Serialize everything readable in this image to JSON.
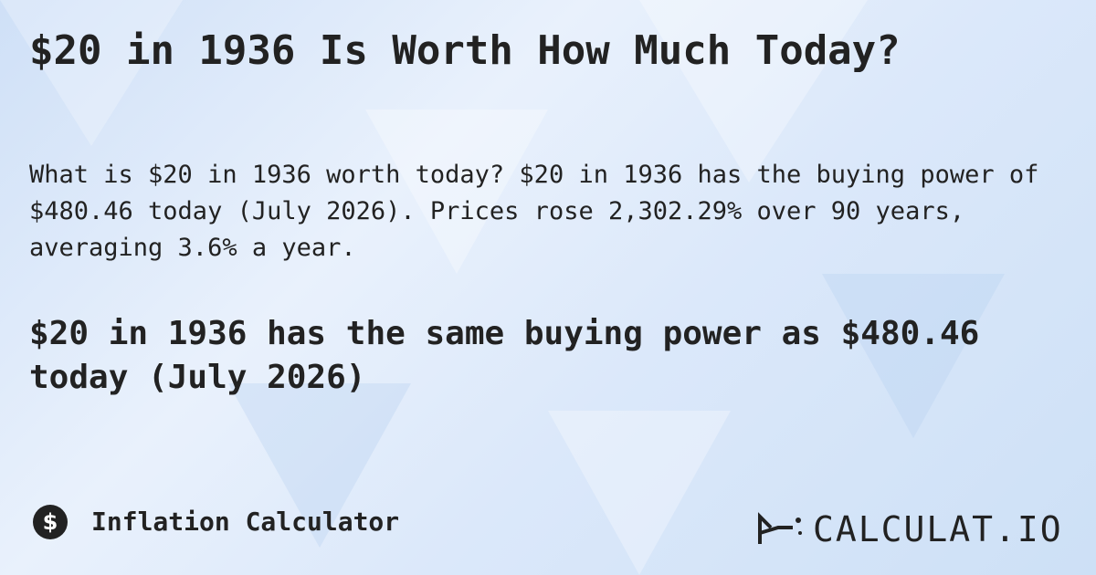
{
  "header": {
    "title": "$20 in 1936 Is Worth How Much Today?"
  },
  "body": {
    "paragraph": "What is $20 in 1936 worth today? $20 in 1936 has the buying power of $480.46 today (July 2026). Prices rose 2,302.29% over 90 years, averaging 3.6% a year.",
    "headline": "$20 in 1936 has the same buying power as $480.46 today (July 2026)"
  },
  "footer": {
    "icon": "$",
    "label": "Inflation Calculator",
    "brand": "CALCULAT.IO"
  }
}
